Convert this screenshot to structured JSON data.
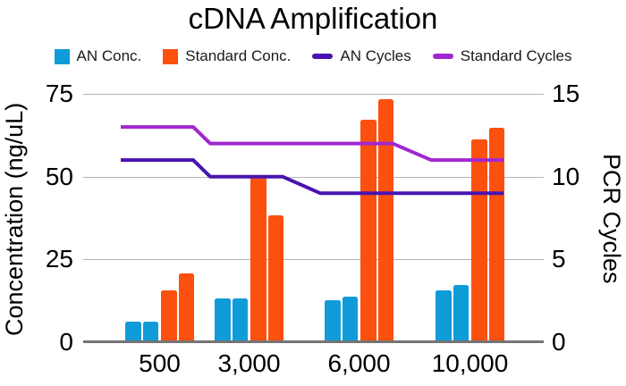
{
  "chart_data": {
    "type": "combo",
    "title": "cDNA Amplification",
    "categories": [
      "500",
      "3,000",
      "6,000",
      "10,000"
    ],
    "series": [
      {
        "name": "AN Conc.",
        "type": "bar",
        "axis": "left",
        "color": "#0f9bd8",
        "values": [
          [
            6,
            6
          ],
          [
            13,
            13
          ],
          [
            12.5,
            13.5
          ],
          [
            15.5,
            17
          ]
        ]
      },
      {
        "name": "Standard Conc.",
        "type": "bar",
        "axis": "left",
        "color": "#fc500f",
        "values": [
          [
            15.5,
            20.5
          ],
          [
            50,
            38
          ],
          [
            67,
            73
          ],
          [
            61,
            64.5
          ]
        ]
      },
      {
        "name": "AN Cycles",
        "type": "line",
        "axis": "right",
        "color": "#4814b0",
        "values": [
          11,
          10,
          9,
          9
        ]
      },
      {
        "name": "Standard Cycles",
        "type": "line",
        "axis": "right",
        "color": "#a226d0",
        "values": [
          13,
          12,
          12,
          11
        ]
      }
    ],
    "left_axis": {
      "label": "Concentration (ng/uL)",
      "ticks": [
        0,
        25,
        50,
        75
      ],
      "range": [
        0,
        75
      ]
    },
    "right_axis": {
      "label": "PCR Cycles",
      "ticks": [
        0,
        5,
        10,
        15
      ],
      "range": [
        0,
        15
      ]
    },
    "grid": true,
    "legend_position": "top",
    "colors": {
      "grid_line": "#b3b3b3",
      "axis_line": "#747474",
      "text": "#000000"
    }
  }
}
